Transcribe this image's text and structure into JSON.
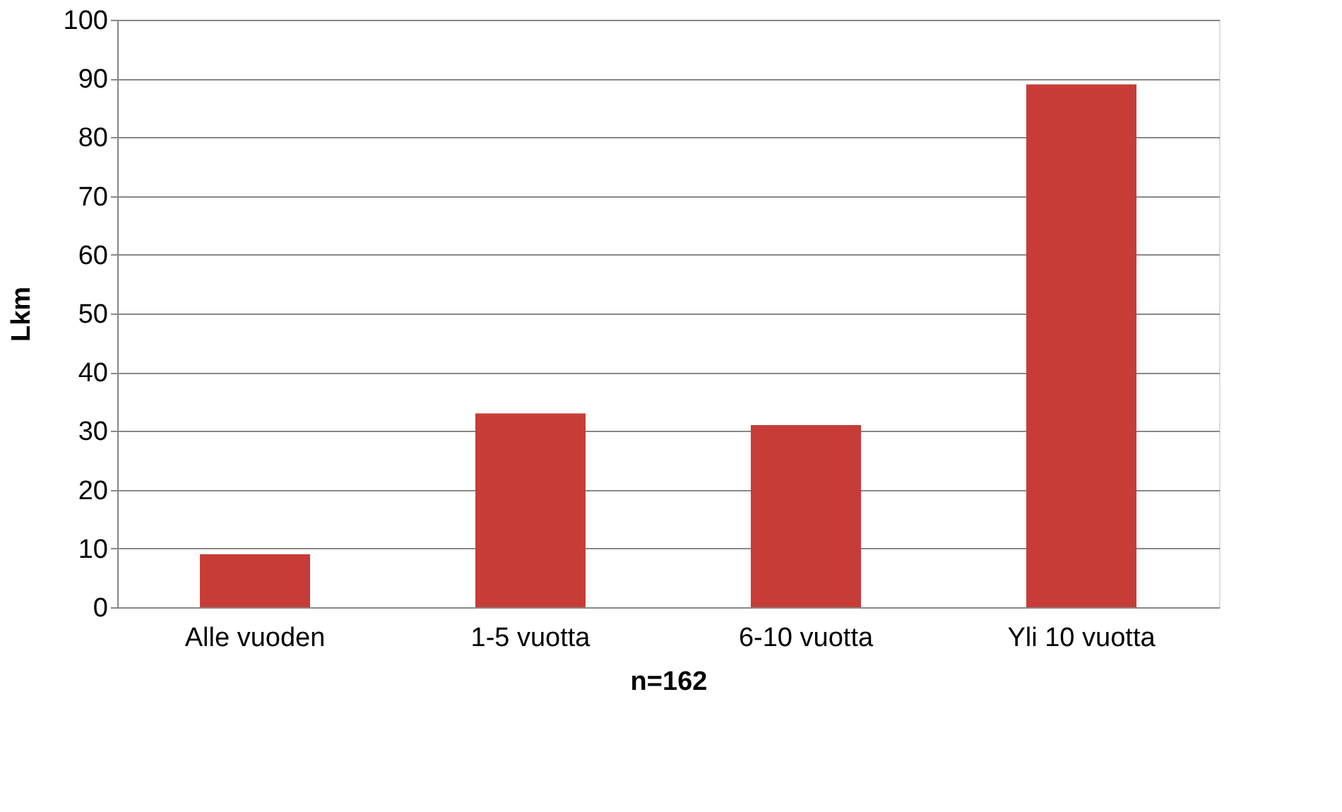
{
  "chart_data": {
    "type": "bar",
    "xlabel": "n=162",
    "ylabel": "Lkm",
    "categories": [
      "Alle vuoden",
      "1-5 vuotta",
      "6-10 vuotta",
      "Yli 10 vuotta"
    ],
    "values": [
      9,
      33,
      31,
      89
    ],
    "color": "#c83c37",
    "ylim": [
      0,
      100
    ],
    "yticks": [
      0,
      10,
      20,
      30,
      40,
      50,
      60,
      70,
      80,
      90,
      100
    ],
    "grid": "y"
  }
}
